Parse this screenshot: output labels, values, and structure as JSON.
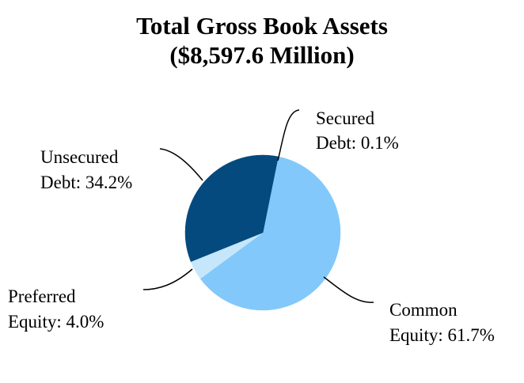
{
  "chart_data": {
    "type": "pie",
    "title": "Total Gross Book Assets",
    "subtitle": "($8,597.6 Million)",
    "slices": [
      {
        "name": "Common Equity",
        "label_line1": "Common",
        "label_line2": "Equity: 61.7%",
        "value": 61.7,
        "color": "#82C8FA"
      },
      {
        "name": "Preferred Equity",
        "label_line1": "Preferred",
        "label_line2": "Equity: 4.0%",
        "value": 4.0,
        "color": "#C6E6FC"
      },
      {
        "name": "Unsecured Debt",
        "label_line1": "Unsecured",
        "label_line2": "Debt: 34.2%",
        "value": 34.2,
        "color": "#054A7E"
      },
      {
        "name": "Secured Debt",
        "label_line1": "Secured",
        "label_line2": "Debt: 0.1%",
        "value": 0.1,
        "color": "#054A7E"
      }
    ]
  }
}
